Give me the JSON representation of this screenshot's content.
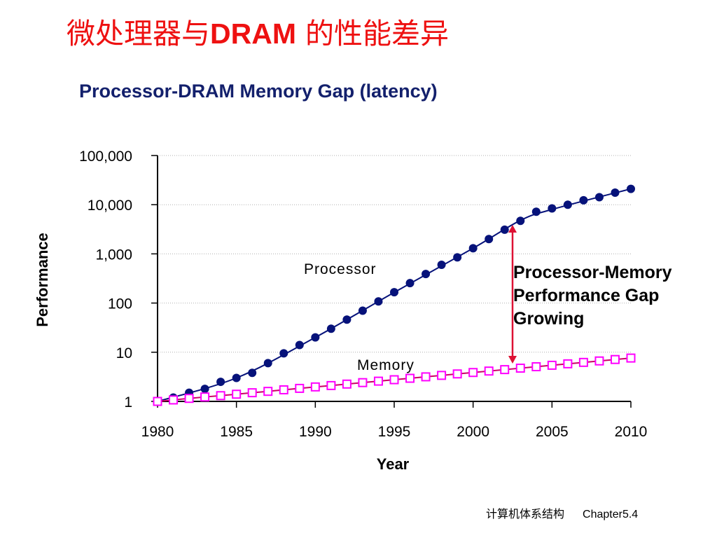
{
  "slide": {
    "title_cn1": "微处理器与",
    "title_latin": "DRAM",
    "title_cn2": " 的性能差异",
    "footer_course": "计算机体系结构",
    "footer_chapter": "Chapter5.4"
  },
  "colors": {
    "title": "#ee1111",
    "chart_title": "#13206c",
    "processor_series": "#06127a",
    "memory_series": "#ff00ff",
    "memory_line": "#cc0066",
    "gap_arrow": "#dd1133",
    "grid": "#b0b0b0"
  },
  "chart_data": {
    "type": "line",
    "title": "Processor-DRAM Memory Gap (latency)",
    "xlabel": "Year",
    "ylabel": "Performance",
    "y_scale": "log",
    "xlim": [
      1980,
      2010
    ],
    "ylim": [
      1,
      100000
    ],
    "x_ticks": [
      1980,
      1985,
      1990,
      1995,
      2000,
      2005,
      2010
    ],
    "x_tick_labels": [
      "1980",
      "1985",
      "1990",
      "1995",
      "2000",
      "2005",
      "2010"
    ],
    "y_ticks": [
      1,
      10,
      100,
      1000,
      10000,
      100000
    ],
    "y_tick_labels": [
      "1",
      "10",
      "100",
      "1,000",
      "10,000",
      "100,000"
    ],
    "grid": "horizontal dotted",
    "series": [
      {
        "name": "Processor",
        "marker": "filled-circle",
        "x": [
          1980,
          1981,
          1982,
          1983,
          1984,
          1985,
          1986,
          1987,
          1988,
          1989,
          1990,
          1991,
          1992,
          1993,
          1994,
          1995,
          1996,
          1997,
          1998,
          1999,
          2000,
          2001,
          2002,
          2003,
          2004,
          2005,
          2006,
          2007,
          2008,
          2009,
          2010
        ],
        "values": [
          1,
          1.2,
          1.5,
          1.8,
          2.5,
          3,
          3.8,
          6,
          9.5,
          14,
          20,
          30,
          46,
          70,
          108,
          166,
          254,
          390,
          600,
          850,
          1300,
          2000,
          3100,
          4700,
          7200,
          8400,
          10000,
          12300,
          14200,
          17600,
          21000
        ],
        "curve_x": [
          1980,
          1985,
          1990,
          1995,
          2000,
          2003,
          2005,
          2010
        ],
        "curve_y": [
          1,
          3,
          20,
          165,
          1300,
          4800,
          8000,
          21000
        ]
      },
      {
        "name": "Memory",
        "marker": "open-square",
        "x": [
          1980,
          1981,
          1982,
          1983,
          1984,
          1985,
          1986,
          1987,
          1988,
          1989,
          1990,
          1991,
          1992,
          1993,
          1994,
          1995,
          1996,
          1997,
          1998,
          1999,
          2000,
          2001,
          2002,
          2003,
          2004,
          2005,
          2006,
          2007,
          2008,
          2009,
          2010
        ],
        "values": [
          1,
          1.07,
          1.15,
          1.23,
          1.31,
          1.4,
          1.5,
          1.6,
          1.72,
          1.84,
          1.97,
          2.1,
          2.25,
          2.41,
          2.58,
          2.76,
          2.95,
          3.16,
          3.38,
          3.62,
          3.87,
          4.14,
          4.43,
          4.74,
          5.07,
          5.43,
          5.81,
          6.21,
          6.65,
          7.11,
          7.61
        ]
      }
    ],
    "annotations": {
      "processor_label": "Processor",
      "memory_label": "Memory",
      "gap_label": [
        "Processor-Memory",
        "Performance Gap",
        "Growing"
      ],
      "gap_arrow_year": 2002.5
    }
  }
}
